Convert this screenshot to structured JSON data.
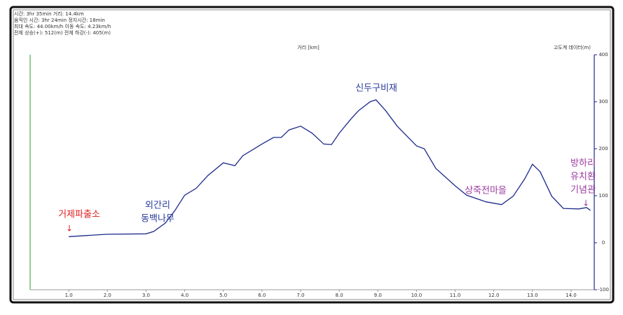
{
  "chart_data": {
    "type": "line",
    "stats": [
      "시간: 3hr 35min  거리: 14.4km",
      "움직인 시간: 3hr 24min  정지시간: 18min",
      "최대 속도: 44.00km/h  이동 속도: 4.23km/h",
      "전체 상승(+): 512(m)  전체 하강(-): 405(m)"
    ],
    "x_label": "거리 [km]",
    "y_label": "고도계 데이터(m)",
    "xlim": [
      0,
      14.6
    ],
    "ylim": [
      -100,
      400
    ],
    "xticks": [
      {
        "value": 1,
        "label": "1.0"
      },
      {
        "value": 2,
        "label": "2.0"
      },
      {
        "value": 3,
        "label": "3.0"
      },
      {
        "value": 4,
        "label": "4.0"
      },
      {
        "value": 5,
        "label": "5.0"
      },
      {
        "value": 6,
        "label": "6.0"
      },
      {
        "value": 7,
        "label": "7.0"
      },
      {
        "value": 8,
        "label": "8.0"
      },
      {
        "value": 9,
        "label": "9.0"
      },
      {
        "value": 10,
        "label": "10.0"
      },
      {
        "value": 11,
        "label": "11.0"
      },
      {
        "value": 12,
        "label": "12.0"
      },
      {
        "value": 13,
        "label": "13.0"
      },
      {
        "value": 14,
        "label": "14.0"
      }
    ],
    "yticks": [
      -100,
      0,
      100,
      200,
      300,
      400
    ],
    "x": [
      1.0,
      2.0,
      3.0,
      3.2,
      3.5,
      3.75,
      4.0,
      4.3,
      4.6,
      5.0,
      5.3,
      5.5,
      6.0,
      6.3,
      6.5,
      6.7,
      7.0,
      7.3,
      7.6,
      7.8,
      8.0,
      8.3,
      8.5,
      8.8,
      8.95,
      9.2,
      9.5,
      10.0,
      10.2,
      10.5,
      11.0,
      11.3,
      11.8,
      12.2,
      12.5,
      12.8,
      13.0,
      13.2,
      13.5,
      13.8,
      14.2,
      14.4,
      14.5
    ],
    "series": [
      {
        "color": "#1c2a8a",
        "values": [
          13,
          18,
          19,
          24,
          42,
          69,
          101,
          116,
          143,
          170,
          164,
          185,
          210,
          224,
          224,
          240,
          248,
          233,
          210,
          209,
          233,
          263,
          281,
          300,
          304,
          281,
          248,
          206,
          200,
          158,
          121,
          101,
          87,
          81,
          99,
          136,
          167,
          151,
          99,
          73,
          72,
          75,
          69
        ]
      }
    ],
    "annotations": [
      {
        "lines": [
          "거제파출소"
        ],
        "color": "#e02020"
      },
      {
        "lines": [
          "외간리",
          "동백나무"
        ],
        "color": "#283a9a"
      },
      {
        "lines": [
          "신두구비재"
        ],
        "color": "#283a9a"
      },
      {
        "lines": [
          "상죽전마을"
        ],
        "color": "#9a3aa0"
      },
      {
        "lines": [
          "방하리",
          "유치환",
          "기념관"
        ],
        "color": "#9a3aa0"
      }
    ]
  }
}
